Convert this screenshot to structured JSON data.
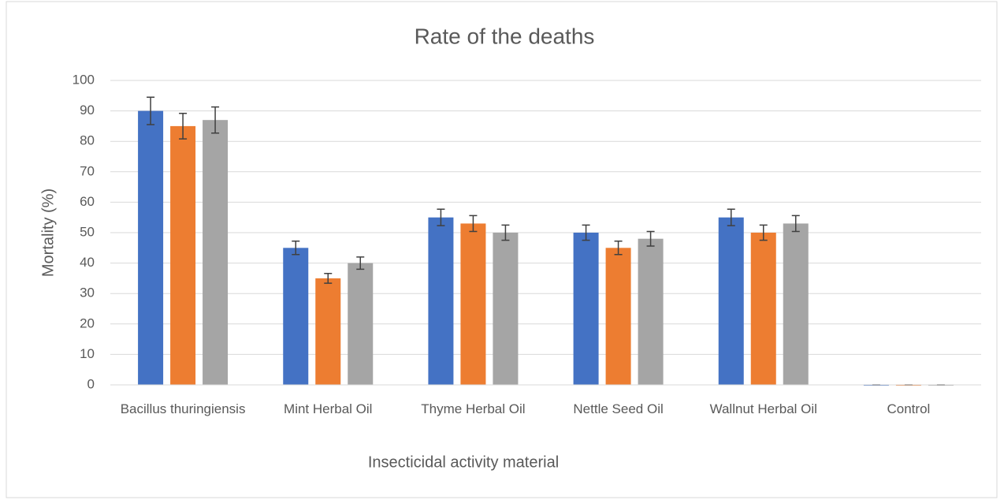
{
  "chart_data": {
    "type": "bar",
    "title": "Rate of the deaths",
    "x_label": "Insecticidal activity material",
    "y_label": "Mortality (%)",
    "categories": [
      "Bacillus thuringiensis",
      "Mint Herbal Oil",
      "Thyme Herbal Oil",
      "Nettle Seed Oil",
      "Wallnut Herbal Oil",
      "Control"
    ],
    "series": [
      {
        "color": "#4472c4",
        "values": [
          90,
          45,
          55,
          50,
          55,
          0
        ],
        "errors": [
          4.5,
          2.2,
          2.7,
          2.5,
          2.7,
          0
        ]
      },
      {
        "color": "#ed7d31",
        "values": [
          85,
          35,
          53,
          45,
          50,
          0
        ],
        "errors": [
          4.2,
          1.6,
          2.6,
          2.2,
          2.5,
          0
        ]
      },
      {
        "color": "#a5a5a5",
        "values": [
          87,
          40,
          50,
          48,
          53,
          0
        ],
        "errors": [
          4.3,
          2.0,
          2.5,
          2.4,
          2.6,
          0
        ]
      }
    ],
    "ylim": [
      0,
      100
    ],
    "yticks": [
      0,
      10,
      20,
      30,
      40,
      50,
      60,
      70,
      80,
      90,
      100
    ],
    "grid": true
  }
}
